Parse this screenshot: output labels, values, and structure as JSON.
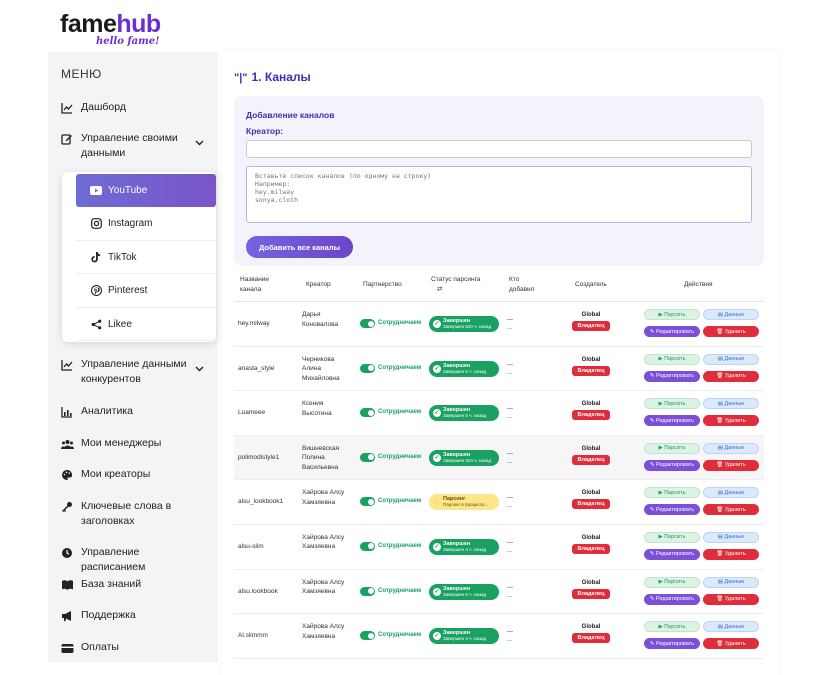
{
  "brand": {
    "name_part1": "fame",
    "name_part2": "hub",
    "tagline": "hello fame!"
  },
  "sidebar": {
    "title": "МЕНЮ",
    "items": [
      {
        "label": "Дашборд",
        "icon": "chart-line-icon"
      },
      {
        "label": "Управление своими данными",
        "icon": "edit-icon",
        "expanded": true
      },
      {
        "label": "Управление данными конкурентов",
        "icon": "chart-line-icon"
      },
      {
        "label": "Аналитика",
        "icon": "bar-chart-icon"
      },
      {
        "label": "Мои менеджеры",
        "icon": "users-icon"
      },
      {
        "label": "Мои креаторы",
        "icon": "palette-icon"
      },
      {
        "label": "Ключевые слова в заголовках",
        "icon": "key-icon"
      },
      {
        "label": "Управление расписанием",
        "icon": "clock-icon"
      },
      {
        "label": "База знаний",
        "icon": "book-icon"
      },
      {
        "label": "Поддержка",
        "icon": "megaphone-icon"
      },
      {
        "label": "Оплаты",
        "icon": "card-icon"
      }
    ],
    "submenu": [
      {
        "label": "YouTube",
        "icon": "youtube-icon",
        "active": true
      },
      {
        "label": "Instagram",
        "icon": "instagram-icon"
      },
      {
        "label": "TikTok",
        "icon": "tiktok-icon"
      },
      {
        "label": "Pinterest",
        "icon": "pinterest-icon"
      },
      {
        "label": "Likee",
        "icon": "share-icon"
      }
    ]
  },
  "main": {
    "title_quote": "\"|\"",
    "title": "1. Каналы",
    "card": {
      "title": "Добавление каналов",
      "creator_label": "Креатор:",
      "creator_value": "",
      "textarea_placeholder": "Вставьте список каналов (по одному на строку)\nНапример:\nhey.milway\nsonya.cloth",
      "add_button": "Добавить все каналы"
    },
    "table": {
      "headers": {
        "name": "Название канала",
        "creator": "Креатор",
        "partnership": "Партнерство",
        "status": "Статус парсинга",
        "status_icon": "⇄",
        "added_by": "Кто добавил",
        "owner": "Создатель",
        "actions": "Действия"
      },
      "labels": {
        "partner": "Сотрудничаем",
        "global": "Global",
        "owner": "Владелец",
        "parse": "▶ Парсить",
        "data": "▤ Данные",
        "edit": "✎ Редактировать",
        "delete": "🗑 Удалить",
        "added_dash": "—",
        "added_dots": "..."
      },
      "rows": [
        {
          "name": "hey.milway",
          "creator": "Дарья Коновалова",
          "status": "done",
          "status_main": "Завершен",
          "status_sub": "Завершен 620 ч. назад"
        },
        {
          "name": "anasta_style",
          "creator": "Черникова Алина Михайловна",
          "status": "done",
          "status_main": "Завершен",
          "status_sub": "Завершен 5 ч. назад"
        },
        {
          "name": "Luameee",
          "creator": "Ксения Высотина",
          "status": "done",
          "status_main": "Завершен",
          "status_sub": "Завершен 5 ч. назад"
        },
        {
          "name": "polimodistyle1",
          "creator": "Вишневская Полина Васильевна",
          "status": "done",
          "status_main": "Завершен",
          "status_sub": "Завершен 624 ч. назад"
        },
        {
          "name": "alsu_lookbook1",
          "creator": "Хайрова Алсу Хамзяевна",
          "status": "parsing",
          "status_main": "Парсинг",
          "status_sub": "Парсинг в процессе..."
        },
        {
          "name": "alsu-slim",
          "creator": "Хайрова Алсу Хамзяевна",
          "status": "done",
          "status_main": "Завершен",
          "status_sub": "Завершен 4 ч. назад"
        },
        {
          "name": "alsu.lookbook",
          "creator": "Хайрова Алсу Хамзяевна",
          "status": "done",
          "status_main": "Завершен",
          "status_sub": "Завершен 5 ч. назад"
        },
        {
          "name": "Al.slimmm",
          "creator": "Хайрова Алсу Хамзяевна",
          "status": "done",
          "status_main": "Завершен",
          "status_sub": "Завершен 4 ч. назад"
        }
      ]
    }
  }
}
